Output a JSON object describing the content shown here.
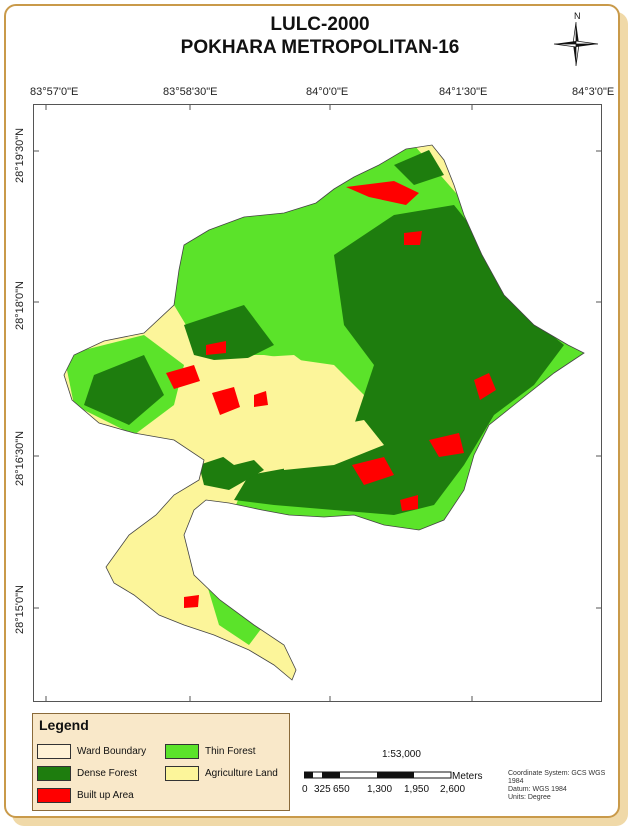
{
  "title": "LULC-2000",
  "subtitle": "POKHARA METROPOLITAN-16",
  "north_label": "N",
  "longitudes": [
    "83°57'0\"E",
    "83°58'30\"E",
    "84°0'0\"E",
    "84°1'30\"E",
    "84°3'0\"E"
  ],
  "latitudes": [
    "28°19'30\"N",
    "28°18'0\"N",
    "28°16'30\"N",
    "28°15'0\"N"
  ],
  "legend": {
    "title": "Legend",
    "items": [
      {
        "label": "Ward Boundary",
        "color": "#fff2d6"
      },
      {
        "label": "Thin Forest",
        "color": "#5be32a"
      },
      {
        "label": "Dense Forest",
        "color": "#1e7d0e"
      },
      {
        "label": "Agriculture Land",
        "color": "#fcf59a"
      },
      {
        "label": "Built up Area",
        "color": "#ff0000"
      }
    ]
  },
  "scale": {
    "ratio": "1:53,000",
    "unit": "Meters",
    "ticks": [
      "0",
      "325",
      "650",
      "1,300",
      "1,950",
      "2,600"
    ]
  },
  "coordinate_info": [
    "Coordinate System: GCS WGS 1984",
    "Datum: WGS 1984",
    "Units: Degree"
  ],
  "colors": {
    "thin_forest": "#5be32a",
    "dense_forest": "#1e7d0e",
    "agriculture": "#fcf59a",
    "built_up": "#ff0000",
    "frame": "#c99a4a",
    "legend_bg": "#f9e8c9"
  }
}
